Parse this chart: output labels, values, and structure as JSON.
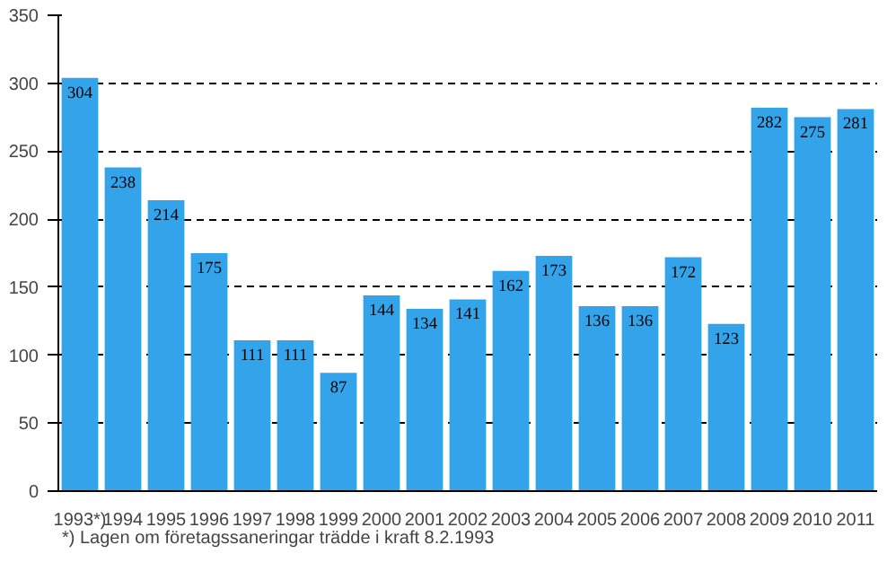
{
  "chart_data": {
    "type": "bar",
    "categories": [
      "1993*)",
      "1994",
      "1995",
      "1996",
      "1997",
      "1998",
      "1999",
      "2000",
      "2001",
      "2002",
      "2003",
      "2004",
      "2005",
      "2006",
      "2007",
      "2008",
      "2009",
      "2010",
      "2011"
    ],
    "values": [
      304,
      238,
      214,
      175,
      111,
      111,
      87,
      144,
      134,
      141,
      162,
      173,
      136,
      136,
      172,
      123,
      282,
      275,
      281
    ],
    "color": "#33a3ea",
    "ylim": [
      0,
      350
    ],
    "yticks": [
      0,
      50,
      100,
      150,
      200,
      250,
      300,
      350
    ],
    "grid": "y",
    "data_labels": true,
    "annotations": [
      "*) Lagen om företagssaneringar trädde i kraft 8.2.1993"
    ]
  }
}
